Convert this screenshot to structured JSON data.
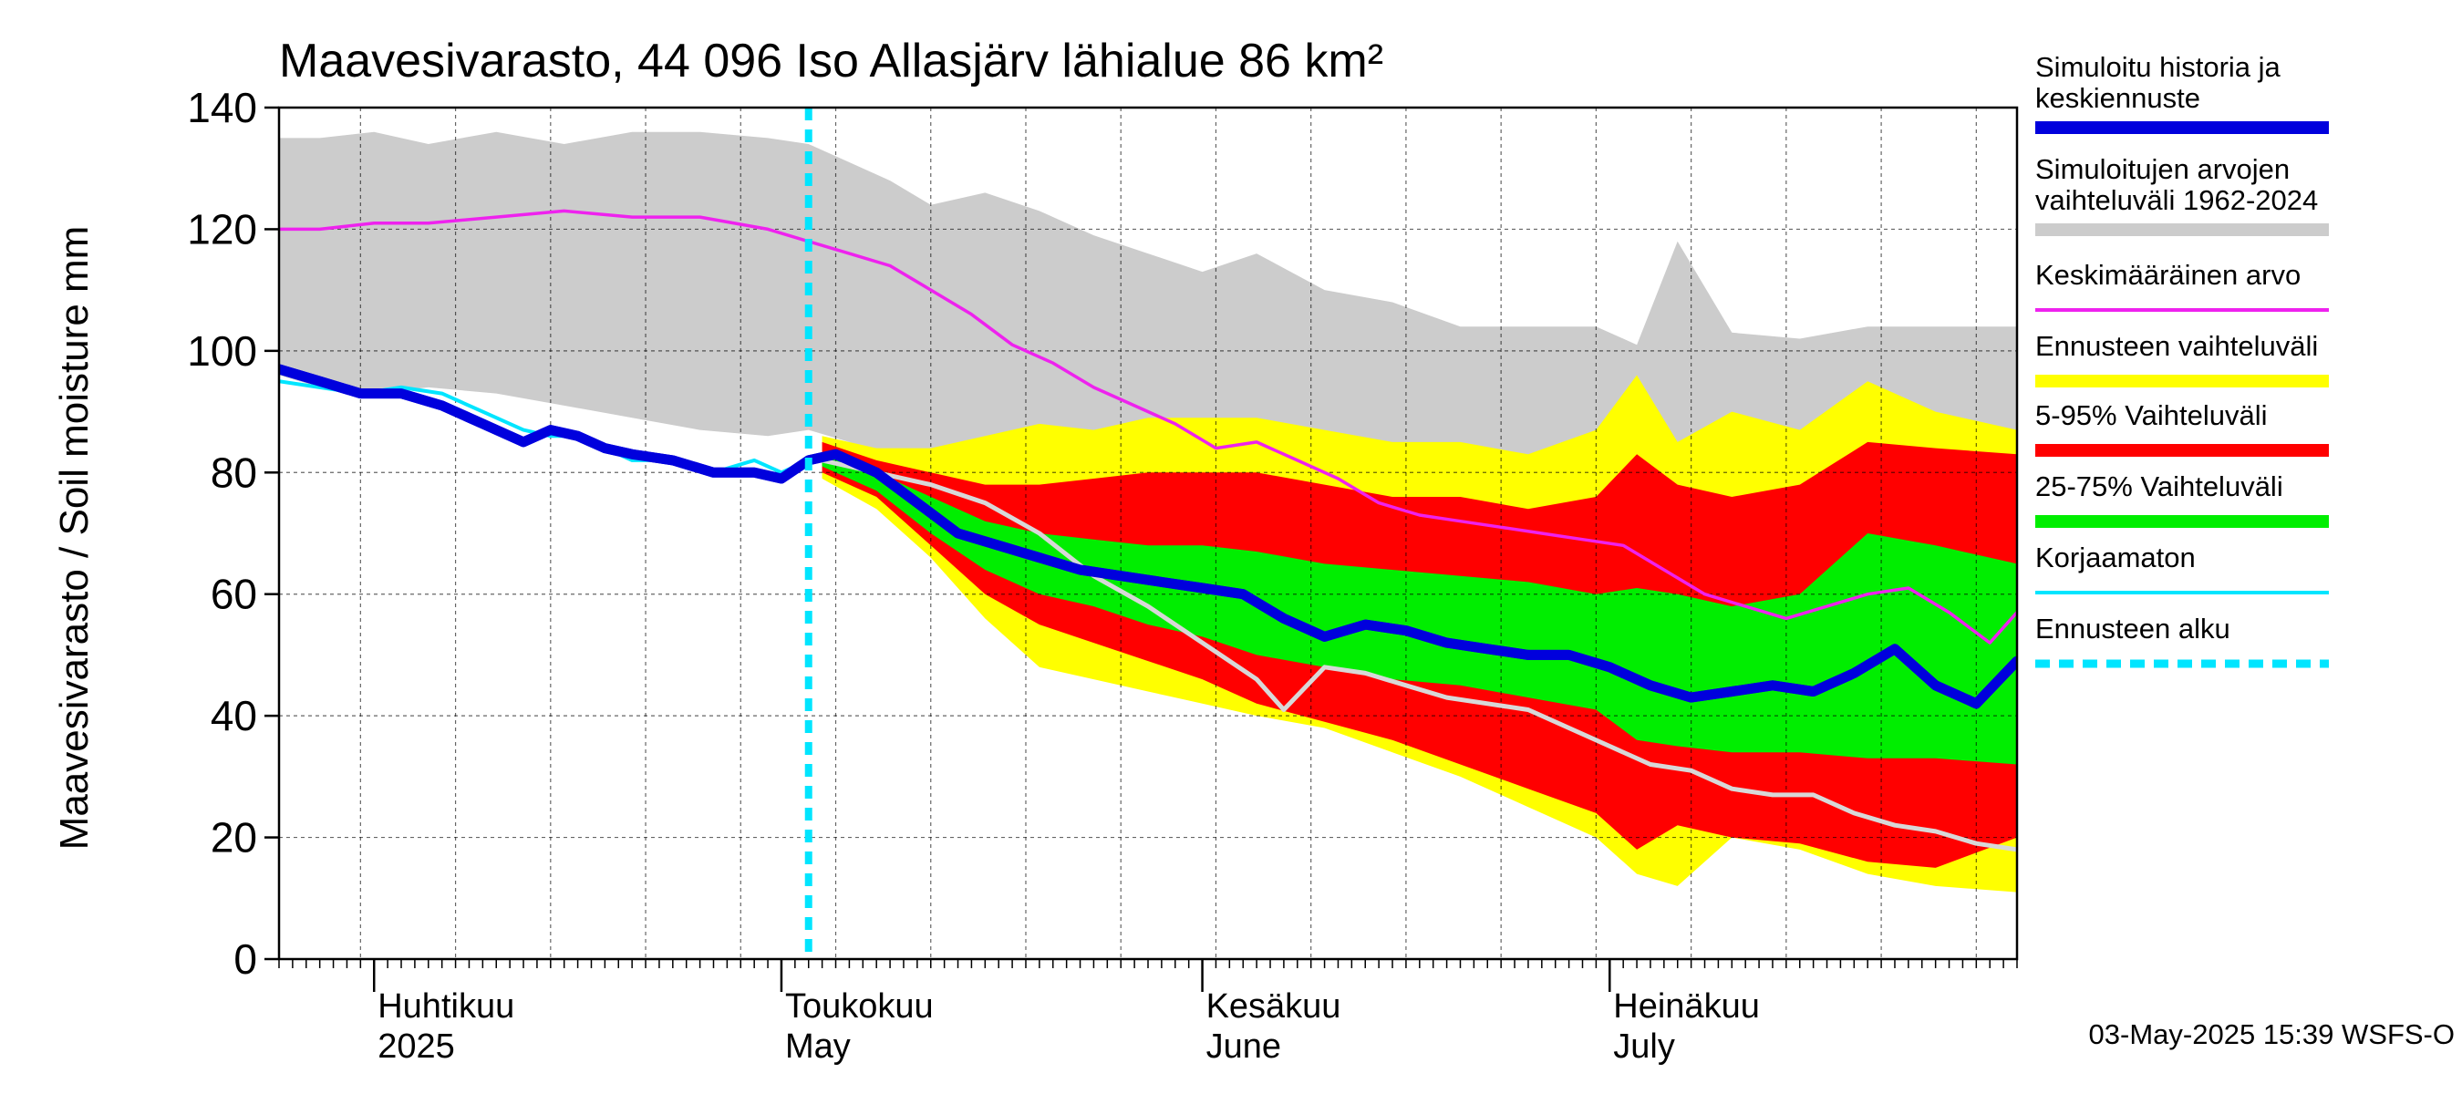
{
  "chart_data": {
    "type": "area",
    "title": "Maavesivarasto, 44 096 Iso Allasjärv lähialue 86 km²",
    "ylabel": "Maavesivarasto / Soil moisture   mm",
    "ylim": [
      0,
      140
    ],
    "yticks": [
      0,
      20,
      40,
      60,
      80,
      100,
      120,
      140
    ],
    "x_start": "2025-03-25",
    "x_end": "2025-07-31",
    "forecast_start": "2025-05-03",
    "grid": true,
    "legend_position": "right",
    "month_labels": [
      {
        "date": "2025-04-01",
        "line1": "Huhtikuu",
        "line2": "2025"
      },
      {
        "date": "2025-05-01",
        "line1": "Toukokuu",
        "line2": "May"
      },
      {
        "date": "2025-06-01",
        "line1": "Kesäkuu",
        "line2": "June"
      },
      {
        "date": "2025-07-01",
        "line1": "Heinäkuu",
        "line2": "July"
      }
    ],
    "timestamp": "03-May-2025 15:39 WSFS-O",
    "bands": {
      "historical_range": {
        "x": [
          "2025-03-25",
          "2025-03-28",
          "2025-04-01",
          "2025-04-05",
          "2025-04-10",
          "2025-04-15",
          "2025-04-20",
          "2025-04-25",
          "2025-04-30",
          "2025-05-03",
          "2025-05-06",
          "2025-05-09",
          "2025-05-12",
          "2025-05-16",
          "2025-05-20",
          "2025-05-24",
          "2025-05-28",
          "2025-06-01",
          "2025-06-05",
          "2025-06-10",
          "2025-06-15",
          "2025-06-20",
          "2025-06-25",
          "2025-06-30",
          "2025-07-03",
          "2025-07-06",
          "2025-07-10",
          "2025-07-15",
          "2025-07-20",
          "2025-07-25",
          "2025-07-31"
        ],
        "high": [
          135,
          135,
          136,
          134,
          136,
          134,
          136,
          136,
          135,
          134,
          131,
          128,
          124,
          126,
          123,
          119,
          116,
          113,
          116,
          110,
          108,
          104,
          104,
          104,
          101,
          118,
          103,
          102,
          104,
          104,
          104
        ],
        "low": [
          96,
          94,
          93,
          94,
          93,
          91,
          89,
          87,
          86,
          87,
          85,
          83,
          79,
          81,
          81,
          80,
          80,
          82,
          82,
          80,
          79,
          79,
          80,
          81,
          81,
          84,
          83,
          85,
          84,
          84,
          84
        ]
      },
      "forecast_range": {
        "x": [
          "2025-05-04",
          "2025-05-08",
          "2025-05-12",
          "2025-05-16",
          "2025-05-20",
          "2025-05-24",
          "2025-05-28",
          "2025-06-01",
          "2025-06-05",
          "2025-06-10",
          "2025-06-15",
          "2025-06-20",
          "2025-06-25",
          "2025-06-30",
          "2025-07-03",
          "2025-07-06",
          "2025-07-10",
          "2025-07-15",
          "2025-07-20",
          "2025-07-25",
          "2025-07-31"
        ],
        "high": [
          86,
          84,
          84,
          86,
          88,
          87,
          89,
          89,
          89,
          87,
          85,
          85,
          83,
          87,
          96,
          85,
          90,
          87,
          95,
          90,
          87
        ],
        "low": [
          79,
          74,
          66,
          56,
          48,
          46,
          44,
          42,
          40,
          38,
          34,
          30,
          25,
          20,
          14,
          12,
          20,
          18,
          14,
          12,
          11
        ]
      },
      "p5_95": {
        "x": [
          "2025-05-04",
          "2025-05-08",
          "2025-05-12",
          "2025-05-16",
          "2025-05-20",
          "2025-05-24",
          "2025-05-28",
          "2025-06-01",
          "2025-06-05",
          "2025-06-10",
          "2025-06-15",
          "2025-06-20",
          "2025-06-25",
          "2025-06-30",
          "2025-07-03",
          "2025-07-06",
          "2025-07-10",
          "2025-07-15",
          "2025-07-20",
          "2025-07-25",
          "2025-07-31"
        ],
        "high": [
          85,
          82,
          80,
          78,
          78,
          79,
          80,
          80,
          80,
          78,
          76,
          76,
          74,
          76,
          83,
          78,
          76,
          78,
          85,
          84,
          83
        ],
        "low": [
          80,
          76,
          68,
          60,
          55,
          52,
          49,
          46,
          42,
          39,
          36,
          32,
          28,
          24,
          18,
          22,
          20,
          19,
          16,
          15,
          20
        ]
      },
      "p25_75": {
        "x": [
          "2025-05-04",
          "2025-05-08",
          "2025-05-12",
          "2025-05-16",
          "2025-05-20",
          "2025-05-24",
          "2025-05-28",
          "2025-06-01",
          "2025-06-05",
          "2025-06-10",
          "2025-06-15",
          "2025-06-20",
          "2025-06-25",
          "2025-06-30",
          "2025-07-03",
          "2025-07-06",
          "2025-07-10",
          "2025-07-15",
          "2025-07-20",
          "2025-07-25",
          "2025-07-31"
        ],
        "high": [
          83,
          80,
          76,
          72,
          70,
          69,
          68,
          68,
          67,
          65,
          64,
          63,
          62,
          60,
          61,
          60,
          58,
          60,
          70,
          68,
          65
        ],
        "low": [
          81,
          77,
          70,
          64,
          60,
          58,
          55,
          53,
          50,
          48,
          46,
          45,
          43,
          41,
          36,
          35,
          34,
          34,
          33,
          33,
          32
        ]
      }
    },
    "series": [
      {
        "name": "Simuloitu historia ja keskiennuste",
        "color": "#0000dd",
        "x": [
          "2025-03-25",
          "2025-03-28",
          "2025-03-31",
          "2025-04-03",
          "2025-04-06",
          "2025-04-09",
          "2025-04-12",
          "2025-04-14",
          "2025-04-16",
          "2025-04-18",
          "2025-04-20",
          "2025-04-23",
          "2025-04-26",
          "2025-04-29",
          "2025-05-01",
          "2025-05-03",
          "2025-05-05",
          "2025-05-08",
          "2025-05-11",
          "2025-05-14",
          "2025-05-17",
          "2025-05-20",
          "2025-05-23",
          "2025-05-26",
          "2025-05-29",
          "2025-06-01",
          "2025-06-04",
          "2025-06-07",
          "2025-06-10",
          "2025-06-13",
          "2025-06-16",
          "2025-06-19",
          "2025-06-22",
          "2025-06-25",
          "2025-06-28",
          "2025-07-01",
          "2025-07-04",
          "2025-07-07",
          "2025-07-10",
          "2025-07-13",
          "2025-07-16",
          "2025-07-19",
          "2025-07-22",
          "2025-07-25",
          "2025-07-28",
          "2025-07-31"
        ],
        "y": [
          97,
          95,
          93,
          93,
          91,
          88,
          85,
          87,
          86,
          84,
          83,
          82,
          80,
          80,
          79,
          82,
          83,
          80,
          75,
          70,
          68,
          66,
          64,
          63,
          62,
          61,
          60,
          56,
          53,
          55,
          54,
          52,
          51,
          50,
          50,
          48,
          45,
          43,
          44,
          45,
          44,
          47,
          51,
          45,
          42,
          49
        ]
      },
      {
        "name": "Keskimääräinen arvo",
        "color": "#ee22ee",
        "x": [
          "2025-03-25",
          "2025-03-28",
          "2025-04-01",
          "2025-04-05",
          "2025-04-10",
          "2025-04-15",
          "2025-04-20",
          "2025-04-25",
          "2025-04-30",
          "2025-05-03",
          "2025-05-06",
          "2025-05-09",
          "2025-05-12",
          "2025-05-15",
          "2025-05-18",
          "2025-05-21",
          "2025-05-24",
          "2025-05-27",
          "2025-05-30",
          "2025-06-02",
          "2025-06-05",
          "2025-06-08",
          "2025-06-11",
          "2025-06-14",
          "2025-06-17",
          "2025-06-20",
          "2025-06-23",
          "2025-06-26",
          "2025-06-29",
          "2025-07-02",
          "2025-07-05",
          "2025-07-08",
          "2025-07-11",
          "2025-07-14",
          "2025-07-17",
          "2025-07-20",
          "2025-07-23",
          "2025-07-26",
          "2025-07-29",
          "2025-07-31"
        ],
        "y": [
          120,
          120,
          121,
          121,
          122,
          123,
          122,
          122,
          120,
          118,
          116,
          114,
          110,
          106,
          101,
          98,
          94,
          91,
          88,
          84,
          85,
          82,
          79,
          75,
          73,
          72,
          71,
          70,
          69,
          68,
          64,
          60,
          58,
          56,
          58,
          60,
          61,
          57,
          52,
          57
        ]
      },
      {
        "name": "Korjaamaton",
        "color": "#00e5ff",
        "x": [
          "2025-03-25",
          "2025-03-28",
          "2025-03-31",
          "2025-04-03",
          "2025-04-06",
          "2025-04-09",
          "2025-04-12",
          "2025-04-14",
          "2025-04-16",
          "2025-04-18",
          "2025-04-20",
          "2025-04-23",
          "2025-04-26",
          "2025-04-29",
          "2025-05-01",
          "2025-05-03"
        ],
        "y": [
          95,
          94,
          93,
          94,
          93,
          90,
          87,
          86,
          86,
          84,
          82,
          82,
          80,
          82,
          80,
          82
        ]
      },
      {
        "name": "",
        "color": "#d8d8d8",
        "x": [
          "2025-05-04",
          "2025-05-08",
          "2025-05-12",
          "2025-05-16",
          "2025-05-20",
          "2025-05-24",
          "2025-05-28",
          "2025-06-01",
          "2025-06-05",
          "2025-06-07",
          "2025-06-10",
          "2025-06-13",
          "2025-06-16",
          "2025-06-19",
          "2025-06-22",
          "2025-06-25",
          "2025-06-28",
          "2025-07-01",
          "2025-07-04",
          "2025-07-07",
          "2025-07-10",
          "2025-07-13",
          "2025-07-16",
          "2025-07-19",
          "2025-07-22",
          "2025-07-25",
          "2025-07-28",
          "2025-07-31"
        ],
        "y": [
          82,
          80,
          78,
          75,
          70,
          63,
          58,
          52,
          46,
          41,
          48,
          47,
          45,
          43,
          42,
          41,
          38,
          35,
          32,
          31,
          28,
          27,
          27,
          24,
          22,
          21,
          19,
          18
        ]
      }
    ]
  },
  "legend": {
    "items": [
      {
        "line1": "Simuloitu historia ja",
        "line2": "keskiennuste",
        "color": "#0000dd"
      },
      {
        "line1": "Simuloitujen arvojen",
        "line2": "vaihteluväli 1962-2024",
        "color": "#cccccc"
      },
      {
        "line1": "Keskimääräinen arvo",
        "line2": "",
        "color": "#ee22ee"
      },
      {
        "line1": "Ennusteen vaihteluväli",
        "line2": "",
        "color": "#ffff00"
      },
      {
        "line1": "5-95% Vaihteluväli",
        "line2": "",
        "color": "#ff0000"
      },
      {
        "line1": "25-75% Vaihteluväli",
        "line2": "",
        "color": "#00ee00"
      },
      {
        "line1": "Korjaamaton",
        "line2": "",
        "color": "#00e5ff"
      },
      {
        "line1": "Ennusteen alku",
        "line2": "",
        "color": "#00e5ff"
      }
    ]
  }
}
